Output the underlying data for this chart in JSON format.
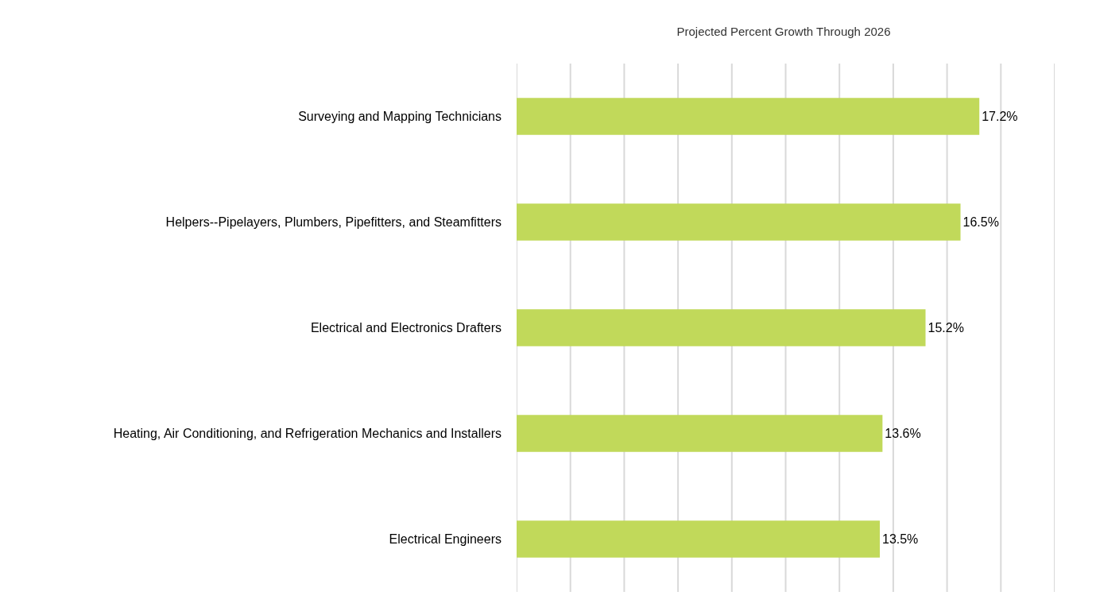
{
  "chart_data": {
    "type": "bar",
    "orientation": "horizontal",
    "title": "Projected Percent Growth Through 2026",
    "categories": [
      "Surveying and Mapping Technicians",
      "Helpers--Pipelayers, Plumbers, Pipefitters, and Steamfitters",
      "Electrical and Electronics Drafters",
      "Heating, Air Conditioning, and Refrigeration Mechanics and Installers",
      "Electrical Engineers"
    ],
    "values": [
      17.2,
      16.5,
      15.2,
      13.6,
      13.5
    ],
    "value_labels": [
      "17.2%",
      "16.5%",
      "15.2%",
      "13.6%",
      "13.5%"
    ],
    "color": "#c1d95a",
    "xlim": [
      0,
      20
    ],
    "xticks": [
      {
        "value": 0,
        "label": null
      },
      {
        "value": 2,
        "label": null
      },
      {
        "value": 4,
        "label": null
      },
      {
        "value": 6,
        "label": null
      },
      {
        "value": 8,
        "label": null
      },
      {
        "value": 10,
        "label": null
      },
      {
        "value": 12,
        "label": null
      },
      {
        "value": 14,
        "label": null
      },
      {
        "value": 16,
        "label": null
      },
      {
        "value": 18,
        "label": null
      },
      {
        "value": 20,
        "label": null
      }
    ],
    "grid": "x",
    "tick_labels": "y"
  }
}
